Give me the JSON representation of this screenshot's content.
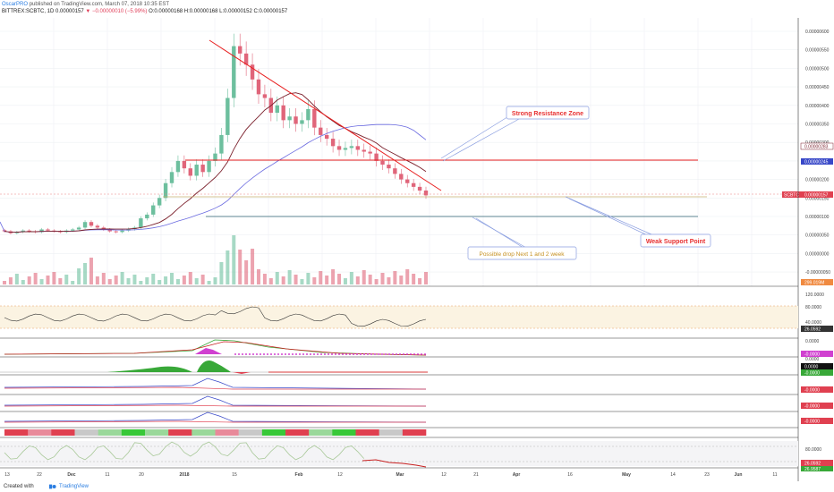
{
  "header": {
    "author": "OscarPRO",
    "published_text": "published on TradingView.com, March 07, 2018 10:35 EST",
    "symbol_line": "BITTREX:SCBTC, 1D",
    "last_price": "0.00000157",
    "change_text": "−0.00000010 (−5.99%)",
    "ohlc": "O:0.00000168 H:0.00000168 L:0.00000152 C:0.00000157"
  },
  "price_axis": {
    "labels": [
      "0.00000600",
      "0.00000550",
      "0.00000500",
      "0.00000450",
      "0.00000400",
      "0.00000350",
      "0.00000300",
      "0.00000250",
      "0.00000200",
      "0.00000150",
      "0.00000100",
      "0.00000050",
      "0.00000000",
      "-0.00000050"
    ],
    "tag_ma_long": "0.00000283",
    "tag_ma_short": "0.00000245",
    "tag_symbol": "SCBTC",
    "tag_last": "0.00000157",
    "tag_volume": "299.019M"
  },
  "annotations": {
    "resistance": "Strong Resistance Zone",
    "support": "Weak Support Point",
    "drop": "Possible drop Next 1 and 2 week"
  },
  "indicators": {
    "rsi_axis": [
      "120.0000",
      "80.0000",
      "40.0000"
    ],
    "rsi_value": "26.0592",
    "panel3_values": [
      "0.0000",
      "-0.0000"
    ],
    "panel4_values": [
      "0.0000",
      "0.0000",
      "-0.0000"
    ],
    "panel5_value": "-0.0000",
    "panel6_value": "-0.0000",
    "panel7_value": "-0.0000",
    "stoch_axis": [
      "80.0000"
    ],
    "stoch_value": "26.0592",
    "stoch_value2": "26.9587"
  },
  "time_axis": [
    "13",
    "22",
    "Dec",
    "11",
    "20",
    "2018",
    "15",
    "Feb",
    "12",
    "Mar",
    "12",
    "21",
    "Apr",
    "16",
    "May",
    "14",
    "23",
    "Jun",
    "11"
  ],
  "footer": {
    "created_with": "Created with",
    "brand": "TradingView"
  },
  "colors": {
    "up": "#6dbf9e",
    "down": "#e0657a",
    "ma_long": "#7a1f2b",
    "ma_short": "#6060d8",
    "trend": "#e82020",
    "support": "#2a6070"
  },
  "chart_data": {
    "type": "candlestick",
    "price_range": [
      -6e-07,
      6.1e-06
    ],
    "approx_closes": [
      6e-07,
      5.5e-07,
      5.8e-07,
      6.2e-07,
      6e-07,
      5.8e-07,
      6.5e-07,
      6.2e-07,
      6e-07,
      5.8e-07,
      6.2e-07,
      6.5e-07,
      7e-07,
      8.5e-07,
      7.5e-07,
      7e-07,
      6.5e-07,
      6e-07,
      5.8e-07,
      6.2e-07,
      6.6e-07,
      7e-07,
      9.5e-07,
      1.05e-06,
      1.3e-06,
      1.5e-06,
      1.9e-06,
      2.2e-06,
      2.5e-06,
      2.3e-06,
      2.1e-06,
      2.4e-06,
      2.2e-06,
      2.5e-06,
      2.7e-06,
      3.2e-06,
      4.2e-06,
      5.6e-06,
      5.4e-06,
      5.1e-06,
      4.7e-06,
      4.3e-06,
      4.2e-06,
      3.8e-06,
      4e-06,
      3.6e-06,
      3.7e-06,
      3.5e-06,
      3.6e-06,
      3.9e-06,
      3.4e-06,
      3.2e-06,
      3.1e-06,
      2.9e-06,
      2.8e-06,
      2.85e-06,
      2.9e-06,
      2.8e-06,
      2.75e-06,
      2.7e-06,
      2.5e-06,
      2.4e-06,
      2.3e-06,
      2.15e-06,
      2e-06,
      1.9e-06,
      1.8e-06,
      1.7e-06,
      1.57e-06
    ]
  }
}
